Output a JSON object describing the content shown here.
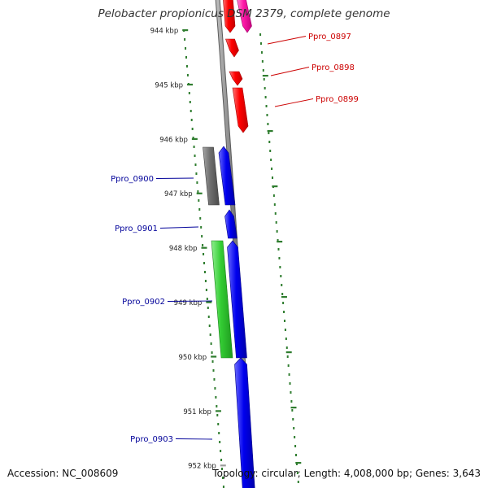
{
  "title": "Pelobacter propionicus DSM 2379, complete genome",
  "accession": "Accession: NC_008609",
  "topology": "Topology: circular; Length: 4,008,000 bp; Genes: 3,643",
  "colors": {
    "backbone": "#8a8a8a",
    "ruler_ticks": "#2f7d2f",
    "forward_label": "#cc0000",
    "reverse_label": "#000099",
    "gene_red": "#ff0000",
    "gene_magenta": "#ff1aa8",
    "gene_blue": "#0000ee",
    "gene_gray": "#6e6e6e",
    "gene_green": "#33cc33"
  },
  "ruler": {
    "ticks": [
      "944 kbp",
      "945 kbp",
      "946 kbp",
      "947 kbp",
      "948 kbp",
      "949 kbp",
      "950 kbp",
      "951 kbp",
      "952 kbp"
    ]
  },
  "gene_labels": [
    {
      "text": "Ppro_0897",
      "strand": "forward"
    },
    {
      "text": "Ppro_0898",
      "strand": "forward"
    },
    {
      "text": "Ppro_0899",
      "strand": "forward"
    },
    {
      "text": "Ppro_0900",
      "strand": "reverse"
    },
    {
      "text": "Ppro_0901",
      "strand": "reverse"
    },
    {
      "text": "Ppro_0902",
      "strand": "reverse"
    },
    {
      "text": "Ppro_0903",
      "strand": "reverse"
    }
  ],
  "genes": [
    {
      "name": "gene-magenta",
      "color": "magenta"
    },
    {
      "name": "gene-red-1",
      "color": "red"
    },
    {
      "name": "gene-red-2",
      "color": "red"
    },
    {
      "name": "gene-red-3",
      "color": "red"
    },
    {
      "name": "gene-red-4",
      "color": "red"
    },
    {
      "name": "gene-gray",
      "color": "gray"
    },
    {
      "name": "gene-blue-1",
      "color": "blue"
    },
    {
      "name": "gene-blue-2",
      "color": "blue"
    },
    {
      "name": "gene-green",
      "color": "green"
    },
    {
      "name": "gene-blue-3",
      "color": "blue"
    },
    {
      "name": "gene-blue-4",
      "color": "blue"
    }
  ]
}
